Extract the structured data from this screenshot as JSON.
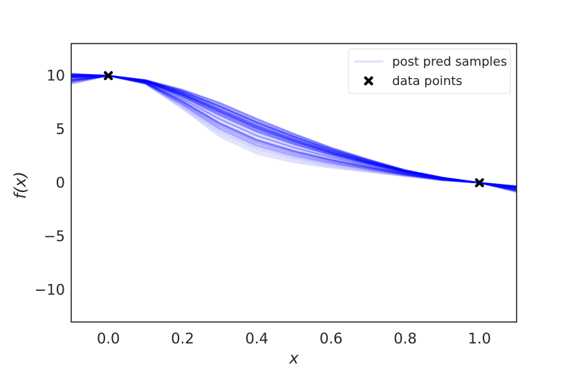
{
  "chart_data": {
    "type": "line",
    "xlabel": "x",
    "ylabel": "f(x)",
    "xlim": [
      -0.1,
      1.1
    ],
    "ylim": [
      -13,
      13
    ],
    "x_ticks": [
      "0.0",
      "0.2",
      "0.4",
      "0.6",
      "0.8",
      "1.0"
    ],
    "y_ticks": [
      "10",
      "5",
      "0",
      "−5",
      "−10"
    ],
    "grid": false,
    "legend_position": "top-right",
    "line_color": "#0000ff",
    "marker_color": "#000000",
    "series": [
      {
        "name": "post pred samples",
        "kind": "line",
        "sample_count": 80,
        "envelope_x": [
          -0.1,
          0.0,
          0.1,
          0.2,
          0.3,
          0.4,
          0.5,
          0.6,
          0.7,
          0.8,
          0.9,
          1.0,
          1.1
        ],
        "envelope_upper": [
          10.2,
          10.0,
          9.6,
          8.7,
          7.5,
          6.0,
          4.6,
          3.3,
          2.2,
          1.2,
          0.5,
          0.0,
          -0.3
        ],
        "envelope_lower": [
          9.2,
          10.0,
          9.2,
          6.9,
          4.3,
          2.7,
          1.9,
          1.4,
          1.0,
          0.6,
          0.2,
          0.0,
          -0.9
        ]
      },
      {
        "name": "data points",
        "kind": "scatter",
        "x": [
          0.0,
          1.0
        ],
        "y": [
          10.0,
          0.0
        ]
      }
    ]
  }
}
